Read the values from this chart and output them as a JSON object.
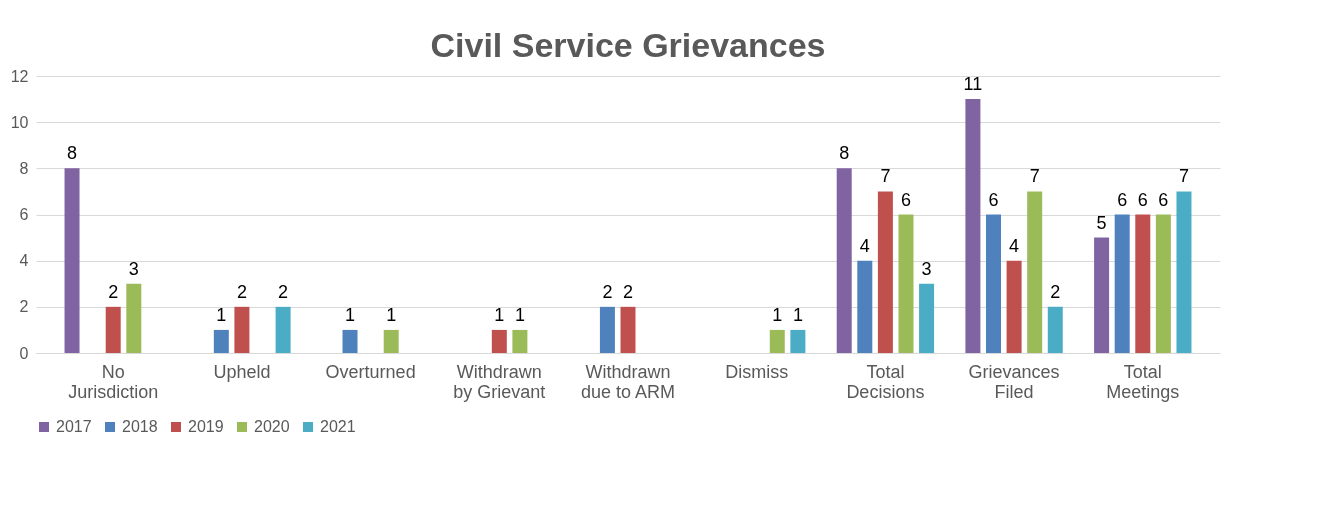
{
  "chart_data": {
    "type": "bar",
    "title": "Civil Service Grievances",
    "categories": [
      "No Jurisdiction",
      "Upheld",
      "Overturned",
      "Withdrawn by Grievant",
      "Withdrawn due to ARM",
      "Dismiss",
      "Total Decisions",
      "Grievances Filed",
      "Total Meetings"
    ],
    "series": [
      {
        "name": "2017",
        "color": "#8064a2",
        "values": [
          8,
          null,
          null,
          null,
          null,
          null,
          8,
          11,
          5
        ]
      },
      {
        "name": "2018",
        "color": "#4f81bd",
        "values": [
          null,
          1,
          1,
          null,
          2,
          null,
          4,
          6,
          6
        ]
      },
      {
        "name": "2019",
        "color": "#c0504d",
        "values": [
          2,
          2,
          null,
          1,
          2,
          null,
          7,
          4,
          6
        ]
      },
      {
        "name": "2020",
        "color": "#9bbb59",
        "values": [
          3,
          null,
          1,
          1,
          null,
          1,
          6,
          7,
          6
        ]
      },
      {
        "name": "2021",
        "color": "#4bacc6",
        "values": [
          null,
          2,
          null,
          null,
          null,
          1,
          3,
          2,
          7
        ]
      }
    ],
    "ylim": [
      0,
      12
    ],
    "yticks": [
      0,
      2,
      4,
      6,
      8,
      10,
      12
    ],
    "grid": "y",
    "legend": "bottom",
    "data_labels": true
  }
}
